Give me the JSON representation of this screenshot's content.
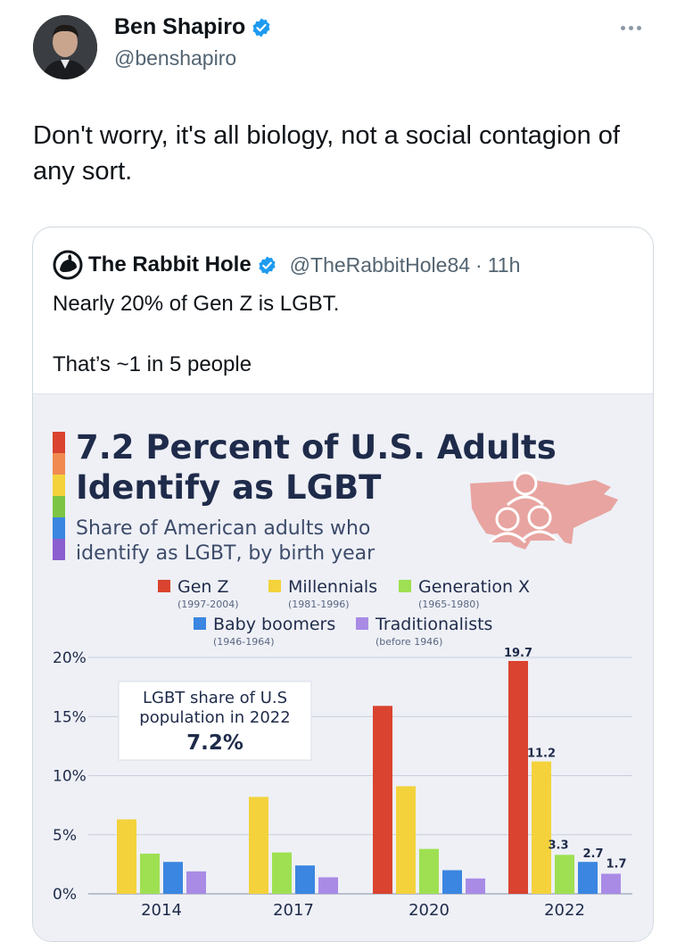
{
  "tweet": {
    "author_name": "Ben Shapiro",
    "author_handle": "@benshapiro",
    "text": "Don't worry, it's all biology, not a social contagion of any sort."
  },
  "quoted_tweet": {
    "author_name": "The Rabbit Hole",
    "author_handle": "@TheRabbitHole84",
    "separator": "·",
    "time": "11h",
    "line1": "Nearly 20% of Gen Z is LGBT.",
    "line2": "That’s ~1 in 5 people"
  },
  "icons": {
    "verified": "verified-badge-icon",
    "more": "more-options-icon",
    "rabbit_logo": "rabbit-hole-logo-icon",
    "map": "us-map-people-icon"
  },
  "colors": {
    "verified_blue": "#1d9bf0",
    "gen_z": "#d9432f",
    "millennials": "#f3d23c",
    "gen_x": "#9ee052",
    "boomers": "#3a86e0",
    "traditionalists": "#a98be6",
    "map_fill": "#e8a4a0"
  },
  "chart_data": {
    "type": "bar",
    "title": "7.2 Percent of U.S. Adults Identify as LGBT",
    "title_line1": "7.2 Percent of U.S. Adults",
    "title_line2": "Identify as LGBT",
    "subtitle_line1": "Share of American adults who",
    "subtitle_line2": "identify as LGBT, by birth year",
    "callout_line1": "LGBT share of U.S",
    "callout_line2": "population in 2022",
    "callout_value": "7.2%",
    "categories": [
      "2014",
      "2017",
      "2020",
      "2022"
    ],
    "ylim": [
      0,
      20
    ],
    "y_ticks": [
      0,
      5,
      10,
      15,
      20
    ],
    "y_tick_labels": [
      "0%",
      "5%",
      "10%",
      "15%",
      "20%"
    ],
    "legend_position": "top",
    "series": [
      {
        "key": "gen_z",
        "name": "Gen Z",
        "years": "(1997-2004)",
        "color": "#d9432f",
        "values": [
          null,
          null,
          15.9,
          19.7
        ],
        "labels": [
          null,
          null,
          null,
          "19.7"
        ]
      },
      {
        "key": "millennials",
        "name": "Millennials",
        "years": "(1981-1996)",
        "color": "#f3d23c",
        "values": [
          6.3,
          8.2,
          9.1,
          11.2
        ],
        "labels": [
          null,
          null,
          null,
          "11.2"
        ]
      },
      {
        "key": "gen_x",
        "name": "Generation X",
        "years": "(1965-1980)",
        "color": "#9ee052",
        "values": [
          3.4,
          3.5,
          3.8,
          3.3
        ],
        "labels": [
          null,
          null,
          null,
          "3.3"
        ]
      },
      {
        "key": "boomers",
        "name": "Baby boomers",
        "years": "(1946-1964)",
        "color": "#3a86e0",
        "values": [
          2.7,
          2.4,
          2.0,
          2.7
        ],
        "labels": [
          null,
          null,
          null,
          "2.7"
        ]
      },
      {
        "key": "traditionalists",
        "name": "Traditionalists",
        "years": "(before 1946)",
        "color": "#a98be6",
        "values": [
          1.9,
          1.4,
          1.3,
          1.7
        ],
        "labels": [
          null,
          null,
          null,
          "1.7"
        ]
      }
    ]
  }
}
